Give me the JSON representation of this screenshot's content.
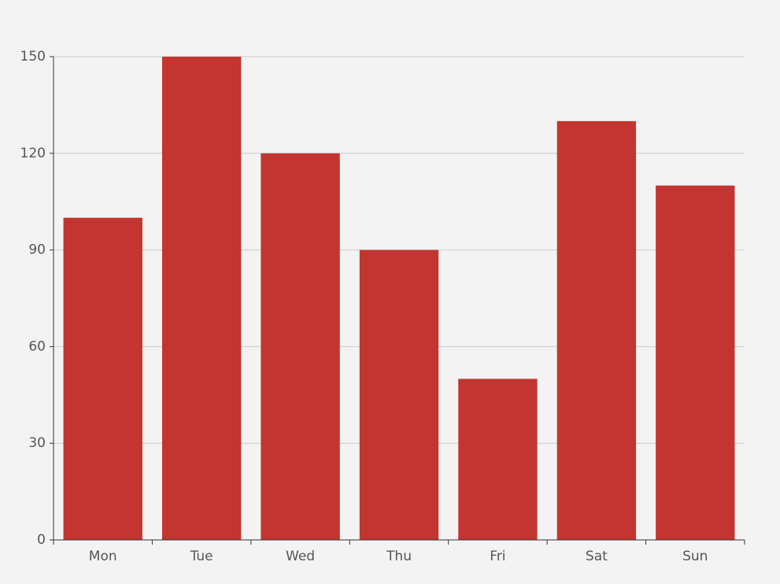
{
  "chart_data": {
    "type": "bar",
    "categories": [
      "Mon",
      "Tue",
      "Wed",
      "Thu",
      "Fri",
      "Sat",
      "Sun"
    ],
    "values": [
      100,
      150,
      120,
      90,
      50,
      130,
      110
    ],
    "color": "#c23531",
    "ylim": [
      0,
      150
    ],
    "yticks": [
      0,
      30,
      60,
      90,
      120,
      150
    ],
    "grid": true
  }
}
